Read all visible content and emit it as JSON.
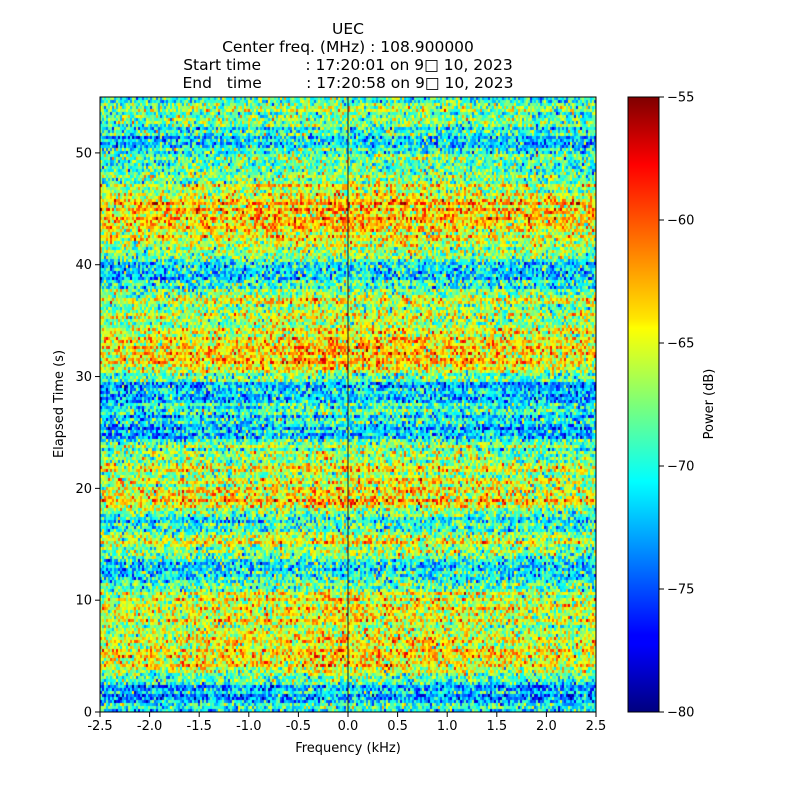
{
  "header": {
    "title": "UEC",
    "center_freq": "Center freq. (MHz) : 108.900000",
    "start_time": "Start time         : 17:20:01 on 9□ 10, 2023",
    "end_time": "End   time         : 17:20:58 on 9□ 10, 2023"
  },
  "chart_data": {
    "type": "heatmap",
    "xlabel": "Frequency (kHz)",
    "ylabel": "Elapsed Time (s)",
    "xlim": [
      -2.5,
      2.5
    ],
    "ylim": [
      0,
      55
    ],
    "x_ticks": [
      "-2.5",
      "-2.0",
      "-1.5",
      "-1.0",
      "-0.5",
      "0.0",
      "0.5",
      "1.0",
      "1.5",
      "2.0",
      "2.5"
    ],
    "y_ticks": [
      "0",
      "10",
      "20",
      "30",
      "40",
      "50"
    ],
    "colorbar": {
      "label": "Power (dB)",
      "range": [
        -80,
        -55
      ],
      "ticks": [
        "−80",
        "−75",
        "−70",
        "−65",
        "−60",
        "−55"
      ],
      "colormap": "jet"
    },
    "center_line_freq": 0.0,
    "band_profile": [
      {
        "t": 0,
        "level": -70
      },
      {
        "t": 2,
        "level": -72
      },
      {
        "t": 4,
        "level": -64
      },
      {
        "t": 5,
        "level": -62
      },
      {
        "t": 7,
        "level": -65
      },
      {
        "t": 9,
        "level": -63
      },
      {
        "t": 11,
        "level": -66
      },
      {
        "t": 13,
        "level": -71
      },
      {
        "t": 15,
        "level": -64
      },
      {
        "t": 17,
        "level": -70
      },
      {
        "t": 19,
        "level": -63
      },
      {
        "t": 21,
        "level": -66
      },
      {
        "t": 23,
        "level": -65
      },
      {
        "t": 25,
        "level": -72
      },
      {
        "t": 27,
        "level": -69
      },
      {
        "t": 29,
        "level": -72
      },
      {
        "t": 31,
        "level": -63
      },
      {
        "t": 33,
        "level": -64
      },
      {
        "t": 35,
        "level": -66
      },
      {
        "t": 37,
        "level": -65
      },
      {
        "t": 39,
        "level": -72
      },
      {
        "t": 41,
        "level": -67
      },
      {
        "t": 43,
        "level": -64
      },
      {
        "t": 45,
        "level": -62
      },
      {
        "t": 47,
        "level": -65
      },
      {
        "t": 49,
        "level": -68
      },
      {
        "t": 51,
        "level": -71
      },
      {
        "t": 53,
        "level": -67
      },
      {
        "t": 55,
        "level": -67
      }
    ]
  }
}
